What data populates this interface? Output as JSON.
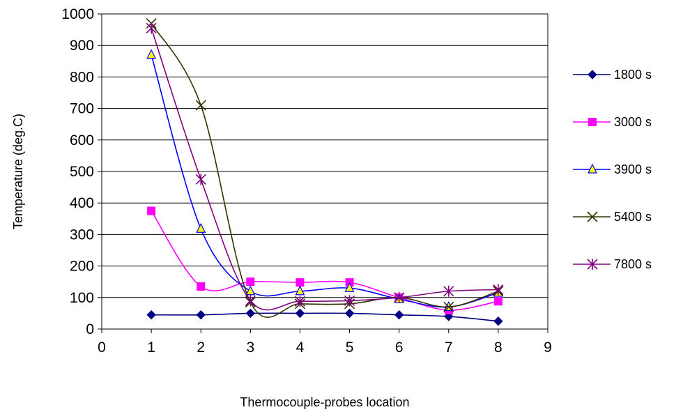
{
  "chart_data": {
    "type": "line",
    "title": "",
    "xlabel": "Thermocouple-probes location",
    "ylabel": "Temperature (deg.C)",
    "xlim": [
      0,
      9
    ],
    "ylim": [
      0,
      1000
    ],
    "xticks": [
      "0",
      "1",
      "2",
      "3",
      "4",
      "5",
      "6",
      "7",
      "8",
      "9"
    ],
    "yticks": [
      "0",
      "100",
      "200",
      "300",
      "400",
      "500",
      "600",
      "700",
      "800",
      "900",
      "1000"
    ],
    "grid": "horizontal",
    "legend": "right",
    "x": [
      1,
      2,
      3,
      4,
      5,
      6,
      7,
      8
    ],
    "series": [
      {
        "name": "1800 s",
        "color": "#000080",
        "marker": "diamond",
        "values": [
          45,
          45,
          50,
          50,
          50,
          45,
          40,
          25
        ]
      },
      {
        "name": "3000 s",
        "color": "#FF00FF",
        "marker": "square",
        "values": [
          375,
          135,
          150,
          148,
          148,
          100,
          60,
          88
        ]
      },
      {
        "name": "3900 s",
        "color": "#0000FF",
        "marker": "triangle",
        "values": [
          870,
          318,
          120,
          120,
          130,
          95,
          70,
          115
        ]
      },
      {
        "name": "5400 s",
        "color": "#333300",
        "marker": "x",
        "values": [
          970,
          710,
          85,
          80,
          80,
          100,
          70,
          120
        ]
      },
      {
        "name": "7800 s",
        "color": "#800080",
        "marker": "star",
        "values": [
          955,
          475,
          90,
          88,
          90,
          100,
          120,
          125
        ]
      }
    ]
  }
}
